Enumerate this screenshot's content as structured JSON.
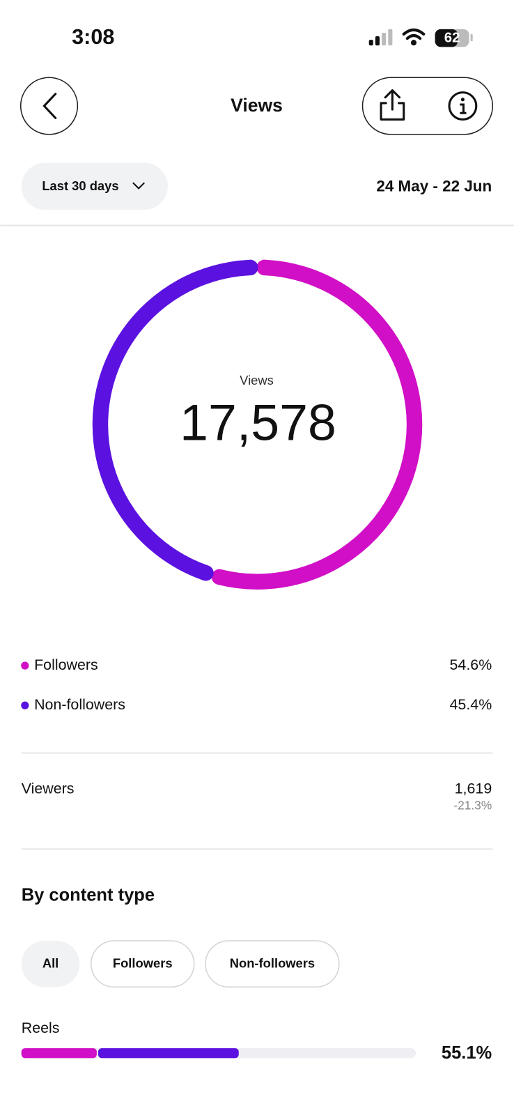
{
  "status_bar": {
    "time": "3:08",
    "battery": "62"
  },
  "header": {
    "title": "Views"
  },
  "filter": {
    "period": "Last 30 days",
    "date_range": "24 May - 22 Jun"
  },
  "breakdown": {
    "label": "Views",
    "total": "17,578",
    "segments": [
      {
        "name": "Followers",
        "color": "#d10fc6",
        "value": 54.6,
        "label": "54.6%"
      },
      {
        "name": "Non-followers",
        "color": "#5b12e0",
        "value": 45.4,
        "label": "45.4%"
      }
    ]
  },
  "viewers": {
    "label": "Viewers",
    "value": "1,619",
    "change": "-21.3%"
  },
  "content_type": {
    "title": "By content type",
    "tabs": [
      "All",
      "Followers",
      "Non-followers"
    ],
    "rows": [
      {
        "name": "Reels",
        "value": 55.1,
        "label": "55.1%",
        "segments": [
          {
            "color": "#d10fc6",
            "value": 19.1
          },
          {
            "color": "#5b12e0",
            "value": 36.0
          }
        ]
      }
    ]
  }
}
